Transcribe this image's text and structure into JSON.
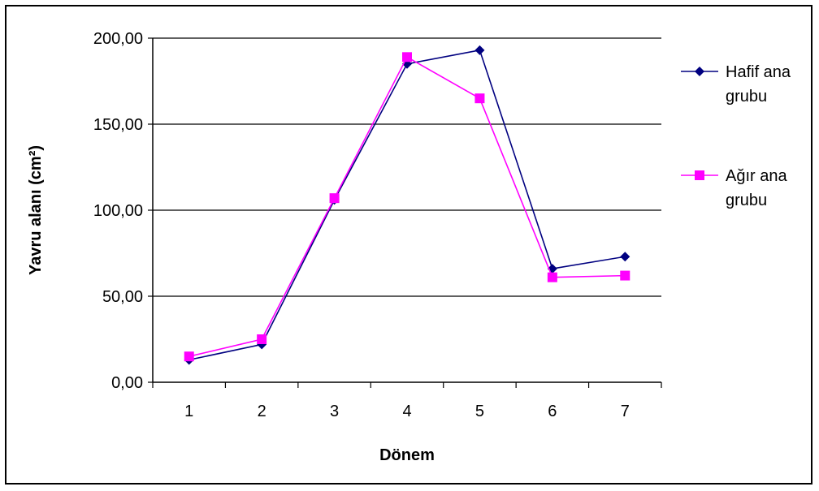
{
  "chart_data": {
    "type": "line",
    "title": "",
    "xlabel": "Dönem",
    "ylabel": "Yavru alanı (cm²)",
    "categories": [
      "1",
      "2",
      "3",
      "4",
      "5",
      "6",
      "7"
    ],
    "ylim": [
      0,
      200
    ],
    "yticks": [
      "0,00",
      "50,00",
      "100,00",
      "150,00",
      "200,00"
    ],
    "grid": "horizontal",
    "legend_position": "right",
    "series": [
      {
        "name": "Hafif ana grubu",
        "name_lines": [
          "Hafif ana",
          "grubu"
        ],
        "color": "#000080",
        "marker": "diamond",
        "values": [
          13,
          22,
          106,
          185,
          193,
          66,
          73
        ]
      },
      {
        "name": "Ağır ana grubu",
        "name_lines": [
          "Ağır ana",
          "grubu"
        ],
        "color": "#FF00FF",
        "marker": "square",
        "values": [
          15,
          25,
          107,
          189,
          165,
          61,
          62
        ]
      }
    ]
  }
}
